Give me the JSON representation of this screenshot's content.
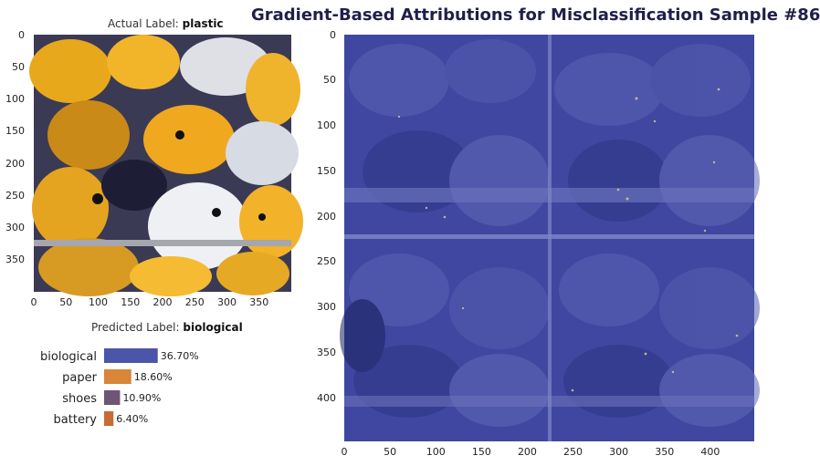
{
  "title": "Gradient-Based Attributions for Misclassification Sample #86",
  "image_panel": {
    "actual_prefix": "Actual Label: ",
    "actual_label": "plastic",
    "x_ticks": [
      "0",
      "50",
      "100",
      "150",
      "200",
      "250",
      "300",
      "350"
    ],
    "y_ticks": [
      "0",
      "50",
      "100",
      "150",
      "200",
      "250",
      "300",
      "350"
    ]
  },
  "attribution_panel": {
    "x_ticks": [
      "0",
      "50",
      "100",
      "150",
      "200",
      "250",
      "300",
      "350",
      "400"
    ],
    "y_ticks": [
      "0",
      "50",
      "100",
      "150",
      "200",
      "250",
      "300",
      "350",
      "400"
    ]
  },
  "prediction": {
    "predicted_prefix": "Predicted Label: ",
    "predicted_label": "biological"
  },
  "chart_data": {
    "type": "bar",
    "orientation": "horizontal",
    "categories": [
      "biological",
      "paper",
      "shoes",
      "battery"
    ],
    "values": [
      36.7,
      18.6,
      10.9,
      6.4
    ],
    "value_labels": [
      "36.70%",
      "18.60%",
      "10.90%",
      "6.40%"
    ],
    "colors": [
      "#4c56a8",
      "#d9853a",
      "#6e5475",
      "#c76a34"
    ],
    "xlim": [
      0,
      100
    ]
  }
}
